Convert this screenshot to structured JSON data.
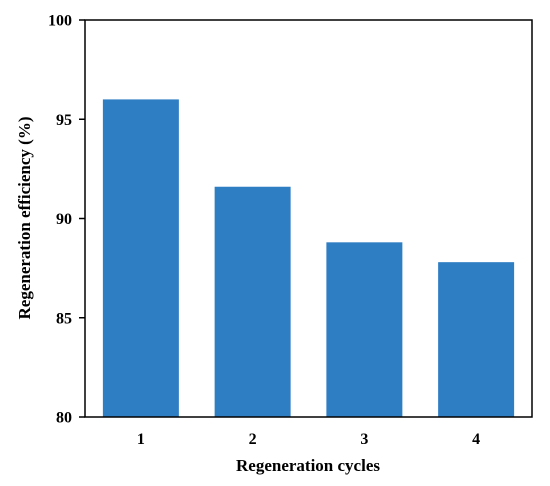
{
  "chart_data": {
    "type": "bar",
    "title": "",
    "xlabel": "Regeneration cycles",
    "ylabel": "Regeneration efficiency (%)",
    "categories": [
      "1",
      "2",
      "3",
      "4"
    ],
    "series": [
      {
        "values": [
          96.0,
          91.6,
          88.8,
          87.8
        ],
        "color": "#2E7EC3"
      }
    ],
    "ylim": [
      80,
      100
    ],
    "yticks": [
      80,
      85,
      90,
      95,
      100
    ],
    "grid": false,
    "legend": "none"
  }
}
